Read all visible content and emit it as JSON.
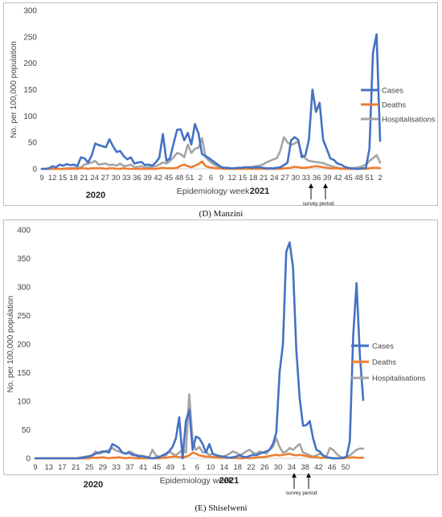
{
  "chart_data": [
    {
      "type": "line",
      "caption": "(D) Manzini",
      "xlabel": "Epidemiology week",
      "ylabel": "No. per 100,000 population",
      "ylim": [
        0,
        300
      ],
      "yticks": [
        0,
        50,
        100,
        150,
        200,
        250,
        300
      ],
      "x_tick_labels": [
        "9",
        "12",
        "15",
        "18",
        "21",
        "24",
        "27",
        "30",
        "33",
        "36",
        "39",
        "42",
        "45",
        "48",
        "51",
        "2",
        "6",
        "9",
        "12",
        "15",
        "18",
        "21",
        "24",
        "27",
        "30",
        "33",
        "36",
        "39",
        "42",
        "45",
        "48",
        "51",
        "2"
      ],
      "year_labels": [
        "2020",
        "2021"
      ],
      "survey_label": "survey period",
      "legend_position": "right",
      "series": [
        {
          "name": "Cases",
          "color": "#4472C4",
          "values": [
            0,
            0,
            1,
            5,
            3,
            8,
            6,
            9,
            7,
            8,
            5,
            22,
            20,
            12,
            25,
            48,
            45,
            43,
            41,
            56,
            43,
            32,
            34,
            24,
            18,
            22,
            10,
            12,
            13,
            7,
            8,
            6,
            12,
            21,
            66,
            15,
            20,
            48,
            74,
            75,
            54,
            68,
            46,
            85,
            67,
            28,
            24,
            20,
            15,
            10,
            5,
            2,
            2,
            1,
            1,
            2,
            2,
            3,
            3,
            2,
            3,
            3,
            2,
            1,
            1,
            1,
            2,
            3,
            7,
            12,
            54,
            60,
            55,
            22,
            25,
            55,
            150,
            108,
            125,
            55,
            38,
            20,
            17,
            10,
            8,
            4,
            2,
            1,
            0,
            0,
            1,
            2,
            38,
            220,
            255,
            53
          ]
        },
        {
          "name": "Deaths",
          "color": "#ED7D31",
          "values": [
            0,
            0,
            0,
            0,
            0,
            0,
            0,
            0,
            0,
            0,
            0,
            1,
            1,
            0,
            1,
            1,
            1,
            1,
            0,
            1,
            1,
            0,
            0,
            1,
            0,
            0,
            0,
            0,
            0,
            0,
            0,
            0,
            0,
            1,
            2,
            1,
            1,
            1,
            2,
            6,
            8,
            5,
            3,
            6,
            9,
            14,
            5,
            3,
            2,
            1,
            1,
            0,
            0,
            0,
            0,
            0,
            0,
            0,
            0,
            0,
            0,
            0,
            0,
            0,
            0,
            0,
            0,
            0,
            1,
            1,
            2,
            4,
            3,
            2,
            2,
            3,
            4,
            5,
            4,
            3,
            2,
            1,
            1,
            1,
            0,
            0,
            0,
            0,
            0,
            0,
            0,
            0,
            1,
            2,
            2,
            1
          ]
        },
        {
          "name": "Hospitalisations",
          "color": "#A5A5A5",
          "values": [
            0,
            0,
            0,
            0,
            0,
            0,
            0,
            1,
            1,
            2,
            1,
            3,
            8,
            10,
            12,
            15,
            8,
            9,
            10,
            7,
            8,
            6,
            10,
            5,
            6,
            8,
            3,
            4,
            5,
            2,
            3,
            4,
            5,
            8,
            12,
            10,
            15,
            22,
            30,
            28,
            22,
            46,
            30,
            38,
            40,
            58,
            22,
            15,
            10,
            6,
            4,
            2,
            2,
            1,
            1,
            1,
            2,
            2,
            3,
            4,
            5,
            6,
            8,
            12,
            15,
            18,
            20,
            35,
            60,
            50,
            45,
            48,
            52,
            28,
            20,
            15,
            14,
            13,
            12,
            11,
            8,
            6,
            4,
            2,
            1,
            0,
            0,
            1,
            2,
            3,
            5,
            8,
            15,
            20,
            26,
            12
          ]
        }
      ]
    },
    {
      "type": "line",
      "caption": "(E) Shiselweni",
      "xlabel": "Epidemiology week",
      "ylabel": "No. per 100,000 population",
      "ylim": [
        0,
        400
      ],
      "yticks": [
        0,
        50,
        100,
        150,
        200,
        250,
        300,
        350,
        400
      ],
      "x_tick_labels": [
        "9",
        "13",
        "17",
        "21",
        "25",
        "29",
        "33",
        "37",
        "41",
        "45",
        "49",
        "1",
        "6",
        "10",
        "14",
        "18",
        "22",
        "26",
        "30",
        "34",
        "38",
        "42",
        "46",
        "50"
      ],
      "year_labels": [
        "2020",
        "2021"
      ],
      "survey_label": "survey period",
      "legend_position": "right",
      "series": [
        {
          "name": "Cases",
          "color": "#4472C4",
          "values": [
            0,
            0,
            0,
            0,
            0,
            0,
            0,
            0,
            0,
            0,
            0,
            0,
            0,
            0,
            1,
            2,
            3,
            5,
            8,
            10,
            12,
            12,
            10,
            25,
            22,
            18,
            10,
            8,
            10,
            6,
            5,
            3,
            4,
            2,
            1,
            0,
            1,
            2,
            5,
            8,
            12,
            20,
            35,
            72,
            0,
            65,
            85,
            15,
            38,
            35,
            25,
            10,
            25,
            8,
            5,
            4,
            3,
            2,
            1,
            2,
            3,
            5,
            3,
            2,
            4,
            6,
            5,
            8,
            10,
            12,
            15,
            25,
            45,
            150,
            200,
            362,
            378,
            335,
            190,
            105,
            57,
            58,
            65,
            35,
            15,
            12,
            5,
            2,
            1,
            0,
            0,
            0,
            1,
            3,
            30,
            215,
            307,
            180,
            102
          ]
        },
        {
          "name": "Deaths",
          "color": "#ED7D31",
          "values": [
            0,
            0,
            0,
            0,
            0,
            0,
            0,
            0,
            0,
            0,
            0,
            0,
            0,
            0,
            0,
            0,
            0,
            1,
            1,
            1,
            2,
            1,
            0,
            1,
            1,
            2,
            1,
            0,
            1,
            1,
            0,
            0,
            0,
            0,
            0,
            0,
            0,
            0,
            1,
            1,
            2,
            3,
            3,
            2,
            2,
            3,
            5,
            10,
            8,
            5,
            4,
            3,
            3,
            2,
            2,
            1,
            1,
            1,
            1,
            0,
            1,
            0,
            0,
            1,
            0,
            1,
            1,
            2,
            2,
            3,
            4,
            5,
            6,
            5,
            6,
            7,
            8,
            6,
            5,
            6,
            5,
            4,
            3,
            2,
            2,
            1,
            1,
            1,
            1,
            0,
            0,
            0,
            0,
            1,
            1,
            2,
            1,
            1,
            1
          ]
        },
        {
          "name": "Hospitalisations",
          "color": "#A5A5A5",
          "values": [
            0,
            0,
            0,
            0,
            0,
            0,
            0,
            0,
            0,
            0,
            0,
            0,
            0,
            1,
            2,
            3,
            4,
            5,
            12,
            8,
            10,
            12,
            15,
            18,
            14,
            12,
            10,
            8,
            12,
            10,
            6,
            5,
            4,
            3,
            2,
            15,
            5,
            3,
            2,
            5,
            12,
            8,
            5,
            10,
            15,
            10,
            112,
            30,
            15,
            20,
            10,
            12,
            5,
            8,
            6,
            4,
            3,
            5,
            8,
            12,
            10,
            6,
            8,
            12,
            15,
            10,
            8,
            12,
            10,
            8,
            15,
            20,
            35,
            20,
            10,
            12,
            18,
            15,
            20,
            25,
            10,
            8,
            5,
            3,
            5,
            8,
            5,
            3,
            18,
            15,
            8,
            3,
            1,
            2,
            5,
            10,
            15,
            17,
            17
          ]
        }
      ]
    }
  ]
}
